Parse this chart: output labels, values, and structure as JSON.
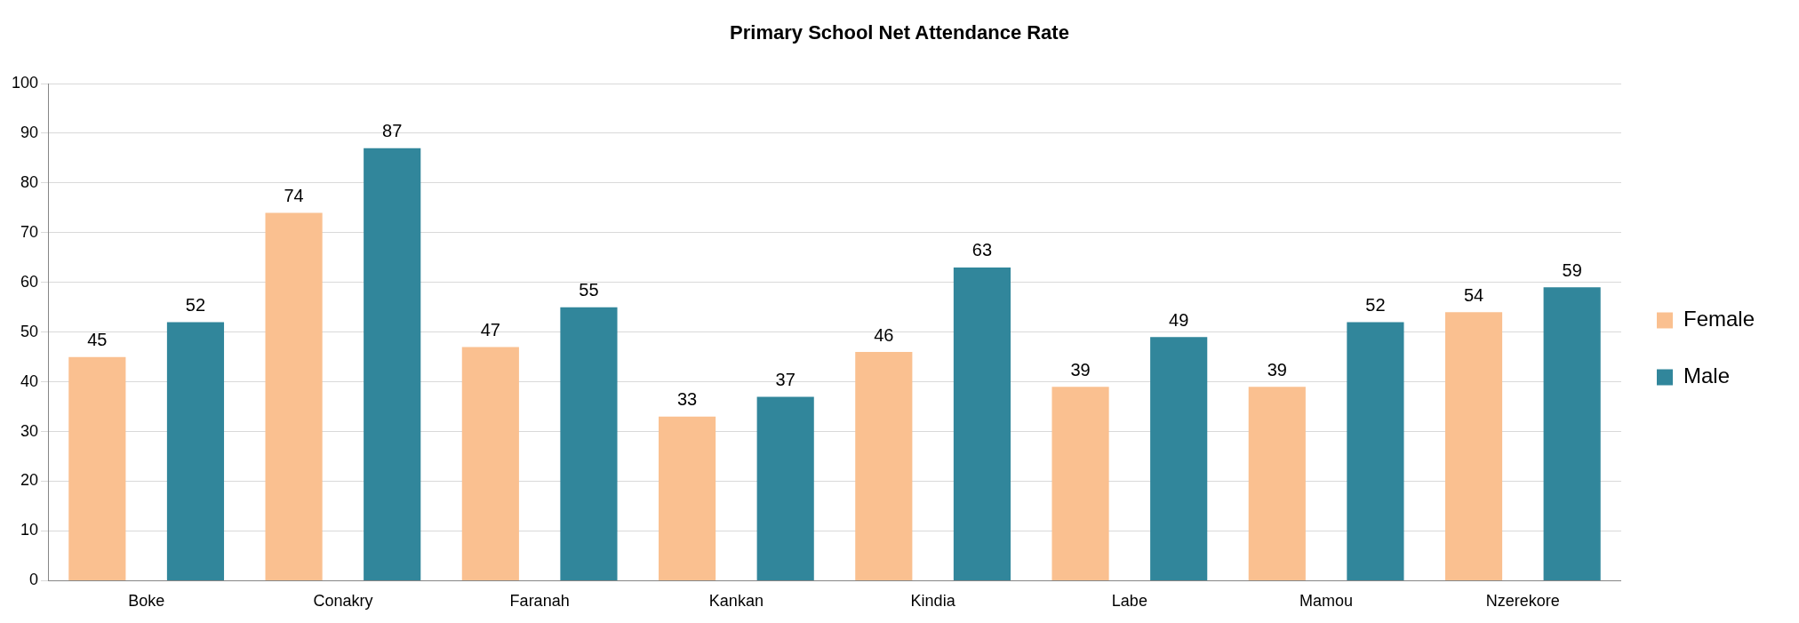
{
  "chart_data": {
    "type": "bar",
    "title": "Primary School Net Attendance Rate",
    "categories": [
      "Boke",
      "Conakry",
      "Faranah",
      "Kankan",
      "Kindia",
      "Labe",
      "Mamou",
      "Nzerekore"
    ],
    "series": [
      {
        "name": "Female",
        "color": "#fac090",
        "values": [
          45,
          74,
          47,
          33,
          46,
          39,
          39,
          54
        ]
      },
      {
        "name": "Male",
        "color": "#31869b",
        "values": [
          52,
          87,
          55,
          37,
          63,
          49,
          52,
          59
        ]
      }
    ],
    "ylim": [
      0,
      100
    ],
    "yticks": [
      0,
      10,
      20,
      30,
      40,
      50,
      60,
      70,
      80,
      90,
      100
    ],
    "grid": "y",
    "legend": "right",
    "data_labels": true
  }
}
